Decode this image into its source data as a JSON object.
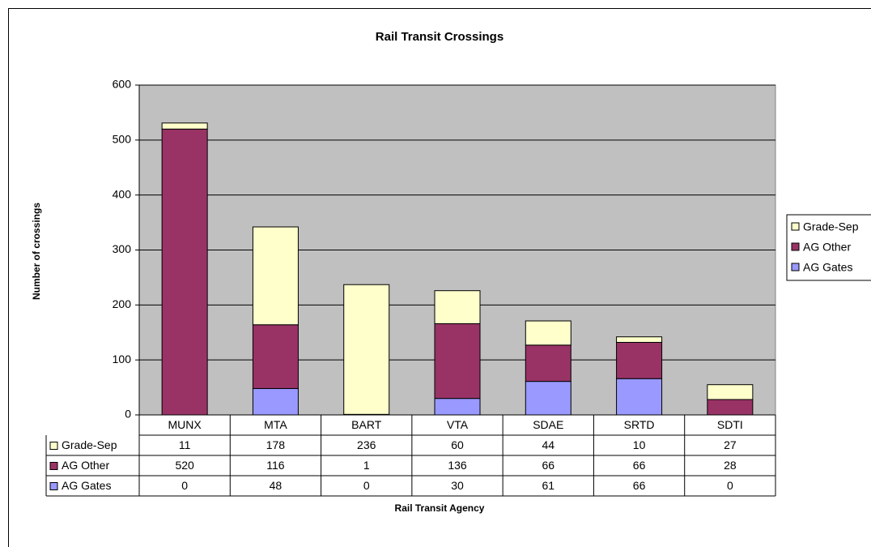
{
  "chart_data": {
    "type": "stacked-bar",
    "title": "Rail Transit Crossings",
    "x_label": "Rail Transit Agency",
    "y_label": "Number of crossings",
    "categories": [
      "MUNX",
      "MTA",
      "BART",
      "VTA",
      "SDAE",
      "SRTD",
      "SDTI"
    ],
    "series": [
      {
        "name": "AG Gates",
        "color": "#9999ff",
        "values": [
          0,
          48,
          0,
          30,
          61,
          66,
          0
        ]
      },
      {
        "name": "AG Other",
        "color": "#993366",
        "values": [
          520,
          116,
          1,
          136,
          66,
          66,
          28
        ]
      },
      {
        "name": "Grade-Sep",
        "color": "#ffffcc",
        "values": [
          11,
          178,
          236,
          60,
          44,
          10,
          27
        ]
      }
    ],
    "ylim": [
      0,
      600
    ],
    "yticks": [
      0,
      100,
      200,
      300,
      400,
      500,
      600
    ],
    "grid": true,
    "legend": "right",
    "data_table": true
  }
}
